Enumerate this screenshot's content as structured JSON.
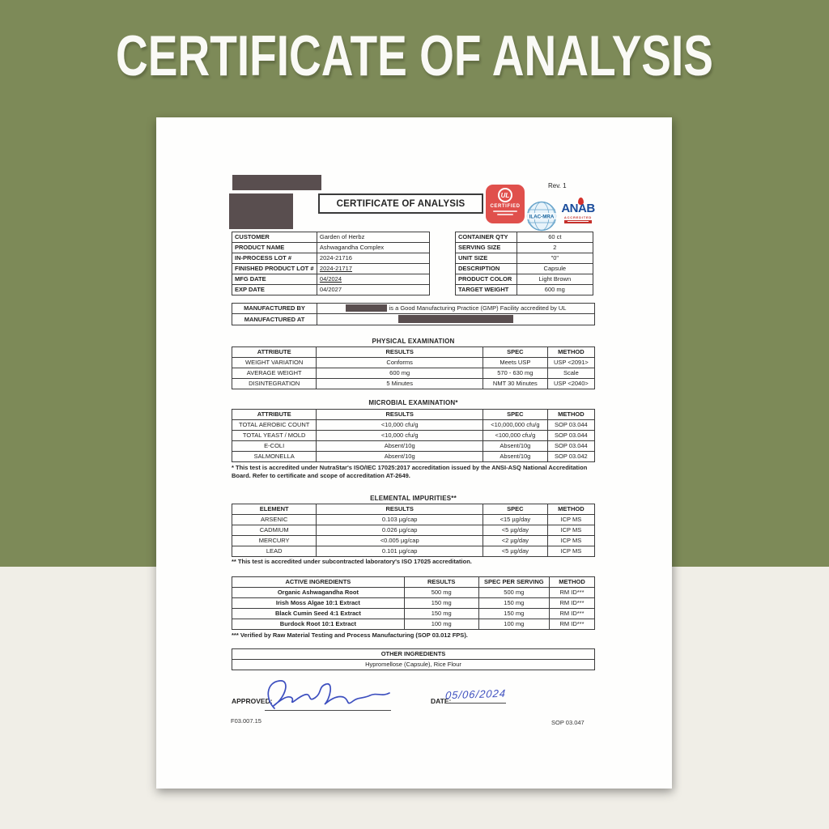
{
  "page": {
    "title": "CERTIFICATE OF ANALYSIS",
    "colors": {
      "background_top": "#7D8A58",
      "background_bottom": "#F0EEE7",
      "ul_badge_red": "#E0504C",
      "anab_blue": "#1A4C9B",
      "anab_red": "#C5302B",
      "ilac_blue": "#16649E",
      "signature_blue": "#3D4FBF"
    }
  },
  "document": {
    "header": {
      "coa_box_label": "CERTIFICATE OF ANALYSIS",
      "rev_label": "Rev. 1",
      "ul_logo_text": "UL",
      "ul_certified_label": "CERTIFIED",
      "ilac_label": "ILAC-MRA",
      "anab_label": "ANAB",
      "anab_sub_label": "ACCREDITED"
    },
    "info_left": {
      "rows": [
        [
          "CUSTOMER",
          "Garden of Herbz"
        ],
        [
          "PRODUCT NAME",
          "Ashwagandha Complex"
        ],
        [
          "IN-PROCESS LOT #",
          "2024-21716"
        ],
        [
          "FINISHED PRODUCT LOT #",
          "2024-21717"
        ],
        [
          "MFG DATE",
          "04/2024"
        ],
        [
          "EXP DATE",
          "04/2027"
        ]
      ]
    },
    "info_right": {
      "rows": [
        [
          "CONTAINER QTY",
          "60 ct"
        ],
        [
          "SERVING SIZE",
          "2"
        ],
        [
          "UNIT SIZE",
          "\"0\""
        ],
        [
          "DESCRIPTION",
          "Capsule"
        ],
        [
          "PRODUCT COLOR",
          "Light Brown"
        ],
        [
          "TARGET WEIGHT",
          "600 mg"
        ]
      ]
    },
    "manufactured": {
      "by_label": "MANUFACTURED BY",
      "by_text": "is a Good Manufacturing Practice (GMP) Facility accredited by UL",
      "at_label": "MANUFACTURED AT"
    },
    "physical": {
      "title": "PHYSICAL EXAMINATION",
      "headers": [
        "ATTRIBUTE",
        "RESULTS",
        "SPEC",
        "METHOD"
      ],
      "rows": [
        [
          "WEIGHT VARIATION",
          "Conforms",
          "Meets USP",
          "USP <2091>"
        ],
        [
          "AVERAGE WEIGHT",
          "600 mg",
          "570 - 630 mg",
          "Scale"
        ],
        [
          "DISINTEGRATION",
          "5 Minutes",
          "NMT 30 Minutes",
          "USP <2040>"
        ]
      ]
    },
    "microbial": {
      "title": "MICROBIAL EXAMINATION*",
      "headers": [
        "ATTRIBUTE",
        "RESULTS",
        "SPEC",
        "METHOD"
      ],
      "rows": [
        [
          "TOTAL AEROBIC COUNT",
          "<10,000 cfu/g",
          "<10,000,000 cfu/g",
          "SOP 03.044"
        ],
        [
          "TOTAL YEAST / MOLD",
          "<10,000 cfu/g",
          "<100,000 cfu/g",
          "SOP 03.044"
        ],
        [
          "E-COLI",
          "Absent/10g",
          "Absent/10g",
          "SOP 03.044"
        ],
        [
          "SALMONELLA",
          "Absent/10g",
          "Absent/10g",
          "SOP 03.042"
        ]
      ],
      "footnote": "* This test is accredited under NutraStar's ISO/IEC 17025:2017 accreditation issued by the ANSI-ASQ National Accreditation Board. Refer to certificate and scope of accreditation AT-2649."
    },
    "elemental": {
      "title": "ELEMENTAL IMPURITIES**",
      "headers": [
        "ELEMENT",
        "RESULTS",
        "SPEC",
        "METHOD"
      ],
      "rows": [
        [
          "ARSENIC",
          "0.103 µg/cap",
          "<15 µg/day",
          "ICP MS"
        ],
        [
          "CADMIUM",
          "0.026 µg/cap",
          "<5 µg/day",
          "ICP MS"
        ],
        [
          "MERCURY",
          "<0.005 µg/cap",
          "<2 µg/day",
          "ICP MS"
        ],
        [
          "LEAD",
          "0.101 µg/cap",
          "<5 µg/day",
          "ICP MS"
        ]
      ],
      "footnote": "** This test is accredited under subcontracted laboratory's ISO 17025 accreditation."
    },
    "active": {
      "headers": [
        "ACTIVE INGREDIENTS",
        "RESULTS",
        "SPEC PER SERVING",
        "METHOD"
      ],
      "rows": [
        [
          "Organic Ashwagandha Root",
          "500 mg",
          "500 mg",
          "RM ID***"
        ],
        [
          "Irish Moss Algae 10:1 Extract",
          "150 mg",
          "150 mg",
          "RM ID***"
        ],
        [
          "Black Cumin Seed 4:1 Extract",
          "150 mg",
          "150 mg",
          "RM ID***"
        ],
        [
          "Burdock Root 10:1 Extract",
          "100 mg",
          "100 mg",
          "RM ID***"
        ]
      ],
      "footnote": "*** Verified by Raw Material Testing and Process Manufacturing (SOP 03.012 FPS)."
    },
    "other": {
      "headers": [
        "OTHER INGREDIENTS"
      ],
      "rows": [
        [
          "Hypromellose (Capsule), Rice Flour"
        ]
      ]
    },
    "footer": {
      "approved_label": "APPROVED:",
      "date_label": "DATE:",
      "date_value": "05/06/2024",
      "form_number": "F03.007.15",
      "sop_number": "SOP 03.047"
    }
  }
}
